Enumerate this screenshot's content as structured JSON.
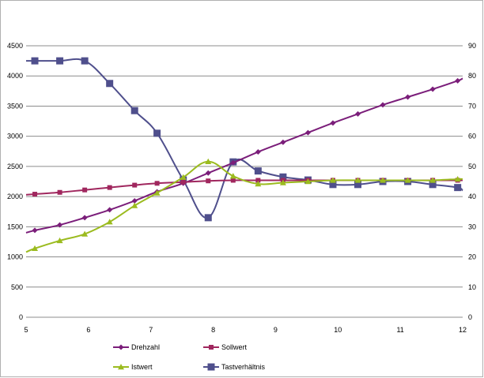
{
  "chart_data": {
    "type": "line",
    "title": "",
    "xlabel": "",
    "ylabel": "",
    "y2label": "",
    "xlim": [
      5,
      12
    ],
    "ylim": [
      0,
      4500
    ],
    "y2lim": [
      0,
      90
    ],
    "x_ticks": [
      "5",
      "6",
      "7",
      "8",
      "9",
      "10",
      "11",
      "12"
    ],
    "y_ticks": [
      "0",
      "500",
      "1000",
      "1500",
      "2000",
      "2500",
      "3000",
      "3500",
      "4000",
      "4500"
    ],
    "y2_ticks": [
      "0",
      "10",
      "20",
      "30",
      "40",
      "50",
      "60",
      "70",
      "80",
      "90"
    ],
    "grid": "horizontal",
    "legend_position": "bottom",
    "series": [
      {
        "name": "Drehzahl",
        "axis": "left",
        "color": "#7b1e7a",
        "marker": "diamond",
        "x": [
          5.0,
          5.14,
          5.54,
          5.94,
          6.34,
          6.74,
          7.1,
          7.52,
          7.92,
          8.32,
          8.72,
          9.12,
          9.52,
          9.92,
          10.32,
          10.72,
          11.12,
          11.52,
          11.92,
          12.0
        ],
        "y": [
          1400,
          1440,
          1530,
          1650,
          1780,
          1930,
          2080,
          2220,
          2390,
          2560,
          2740,
          2900,
          3060,
          3220,
          3370,
          3520,
          3650,
          3780,
          3920,
          3960
        ]
      },
      {
        "name": "Sollwert",
        "axis": "left",
        "color": "#a0275e",
        "marker": "square",
        "x": [
          5.0,
          5.14,
          5.54,
          5.94,
          6.34,
          6.74,
          7.1,
          7.52,
          7.92,
          8.32,
          8.72,
          9.12,
          9.52,
          9.92,
          10.32,
          10.72,
          11.12,
          11.52,
          11.92,
          12.0
        ],
        "y": [
          2030,
          2040,
          2070,
          2110,
          2150,
          2190,
          2220,
          2240,
          2260,
          2270,
          2270,
          2270,
          2270,
          2270,
          2270,
          2270,
          2270,
          2270,
          2270,
          2270
        ]
      },
      {
        "name": "Istwert",
        "axis": "left",
        "color": "#9bbb1f",
        "marker": "triangle",
        "x": [
          5.0,
          5.14,
          5.54,
          5.94,
          6.34,
          6.74,
          7.1,
          7.52,
          7.92,
          8.32,
          8.72,
          9.12,
          9.52,
          9.92,
          10.32,
          10.72,
          11.12,
          11.52,
          11.92,
          12.0
        ],
        "y": [
          1080,
          1140,
          1270,
          1380,
          1580,
          1850,
          2060,
          2320,
          2580,
          2340,
          2210,
          2230,
          2250,
          2270,
          2270,
          2270,
          2270,
          2270,
          2290,
          2290
        ]
      },
      {
        "name": "Tastverhältnis",
        "axis": "right",
        "color": "#4f4f8c",
        "marker": "square-large",
        "x": [
          5.0,
          5.14,
          5.54,
          5.94,
          6.34,
          6.74,
          7.1,
          7.52,
          7.92,
          8.32,
          8.72,
          9.12,
          9.52,
          9.92,
          10.32,
          10.72,
          11.12,
          11.52,
          11.92,
          12.0
        ],
        "y": [
          85,
          85,
          85,
          85,
          77.5,
          68.5,
          61,
          45.5,
          33,
          51.5,
          48.5,
          46.5,
          45.5,
          44,
          44,
          45,
          45,
          44,
          43,
          42
        ]
      }
    ]
  }
}
